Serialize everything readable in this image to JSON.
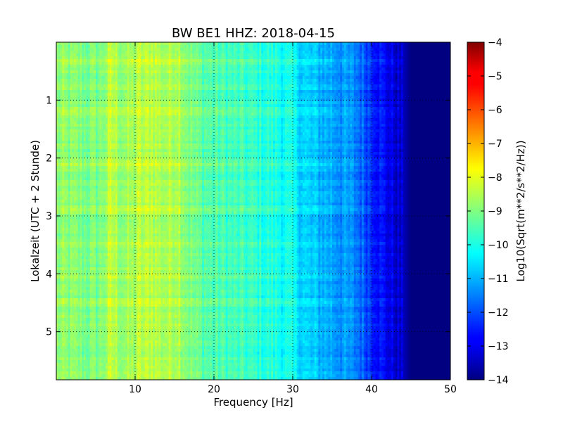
{
  "chart_data": {
    "type": "heatmap",
    "title": "BW BE1 HHZ: 2018-04-15",
    "xlabel": "Frequency [Hz]",
    "ylabel": "Lokalzeit (UTC + 2 Stunde)",
    "colorbar_label": "Log10(Sqrt(m**2/s**2/Hz))",
    "xlim": [
      0,
      50
    ],
    "ylim": [
      5.83,
      0
    ],
    "y_inverted": true,
    "xticks": [
      10,
      20,
      30,
      40,
      50
    ],
    "xtick_labels": [
      "10",
      "20",
      "30",
      "40",
      "50"
    ],
    "yticks": [
      1,
      2,
      3,
      4,
      5
    ],
    "ytick_labels": [
      "1",
      "2",
      "3",
      "4",
      "5"
    ],
    "color_range": [
      -14,
      -4
    ],
    "colorbar_ticks": [
      -4,
      -5,
      -6,
      -7,
      -8,
      -9,
      -10,
      -11,
      -12,
      -13,
      -14
    ],
    "colorbar_tick_labels": [
      "−4",
      "−5",
      "−6",
      "−7",
      "−8",
      "−9",
      "−10",
      "−11",
      "−12",
      "−13",
      "−14"
    ],
    "colormap": "jet",
    "grid": true,
    "frequency_profile": {
      "frequency_hz": [
        0,
        2,
        5,
        7,
        10,
        12,
        15,
        16,
        18,
        20,
        25,
        28,
        30,
        32,
        35,
        38,
        40,
        42,
        44,
        45,
        50
      ],
      "log10_amplitude": [
        -8.9,
        -9.0,
        -9.1,
        -8.7,
        -8.8,
        -8.6,
        -8.6,
        -8.8,
        -9.3,
        -9.5,
        -9.8,
        -10.0,
        -10.3,
        -10.8,
        -11.1,
        -11.5,
        -12.2,
        -12.9,
        -13.4,
        -14.0,
        -14.0
      ]
    },
    "notable_bands": [
      {
        "frequency_hz": 10.5,
        "log10_amplitude": -8.5
      },
      {
        "frequency_hz": 12.0,
        "log10_amplitude": -8.6
      },
      {
        "frequency_hz": 15.5,
        "log10_amplitude": -8.4
      },
      {
        "frequency_hz": 7.0,
        "log10_amplitude": -8.7
      }
    ],
    "notable_times_h": [
      0.3,
      1.2,
      2.1,
      2.9,
      3.5,
      4.05,
      4.5,
      5.6
    ]
  }
}
